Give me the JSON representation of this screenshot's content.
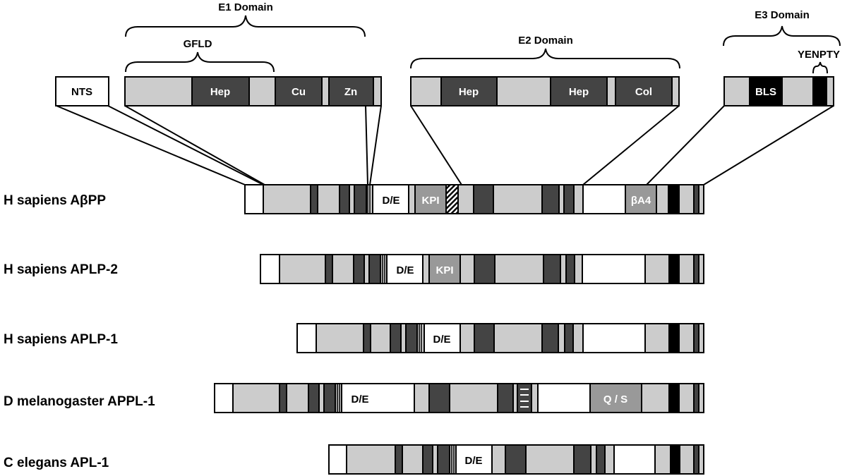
{
  "colors": {
    "light": "#cccccc",
    "dark": "#444444",
    "medium": "#999999",
    "black": "#000000",
    "white": "#ffffff"
  },
  "domain_labels": {
    "e1": "E1 Domain",
    "gfld": "GFLD",
    "e2": "E2 Domain",
    "e3": "E3 Domain",
    "yenpty": "YENPTY"
  },
  "expanded_boxes": {
    "nts": "NTS",
    "e1_hep": "Hep",
    "e1_cu": "Cu",
    "e1_zn": "Zn",
    "e2_hep1": "Hep",
    "e2_hep2": "Hep",
    "e2_col": "Col",
    "e3_bls": "BLS"
  },
  "proteins": {
    "app": {
      "name": "H sapiens AβPP",
      "de": "D/E",
      "kpi": "KPI",
      "ba4": "βA4"
    },
    "aplp2": {
      "name": "H sapiens APLP-2",
      "de": "D/E",
      "kpi": "KPI"
    },
    "aplp1": {
      "name": "H sapiens APLP-1",
      "de": "D/E"
    },
    "appl1": {
      "name": "D melanogaster APPL-1",
      "de": "D/E",
      "qs": "Q / S"
    },
    "apl1": {
      "name": "C elegans APL-1",
      "de": "D/E"
    }
  }
}
